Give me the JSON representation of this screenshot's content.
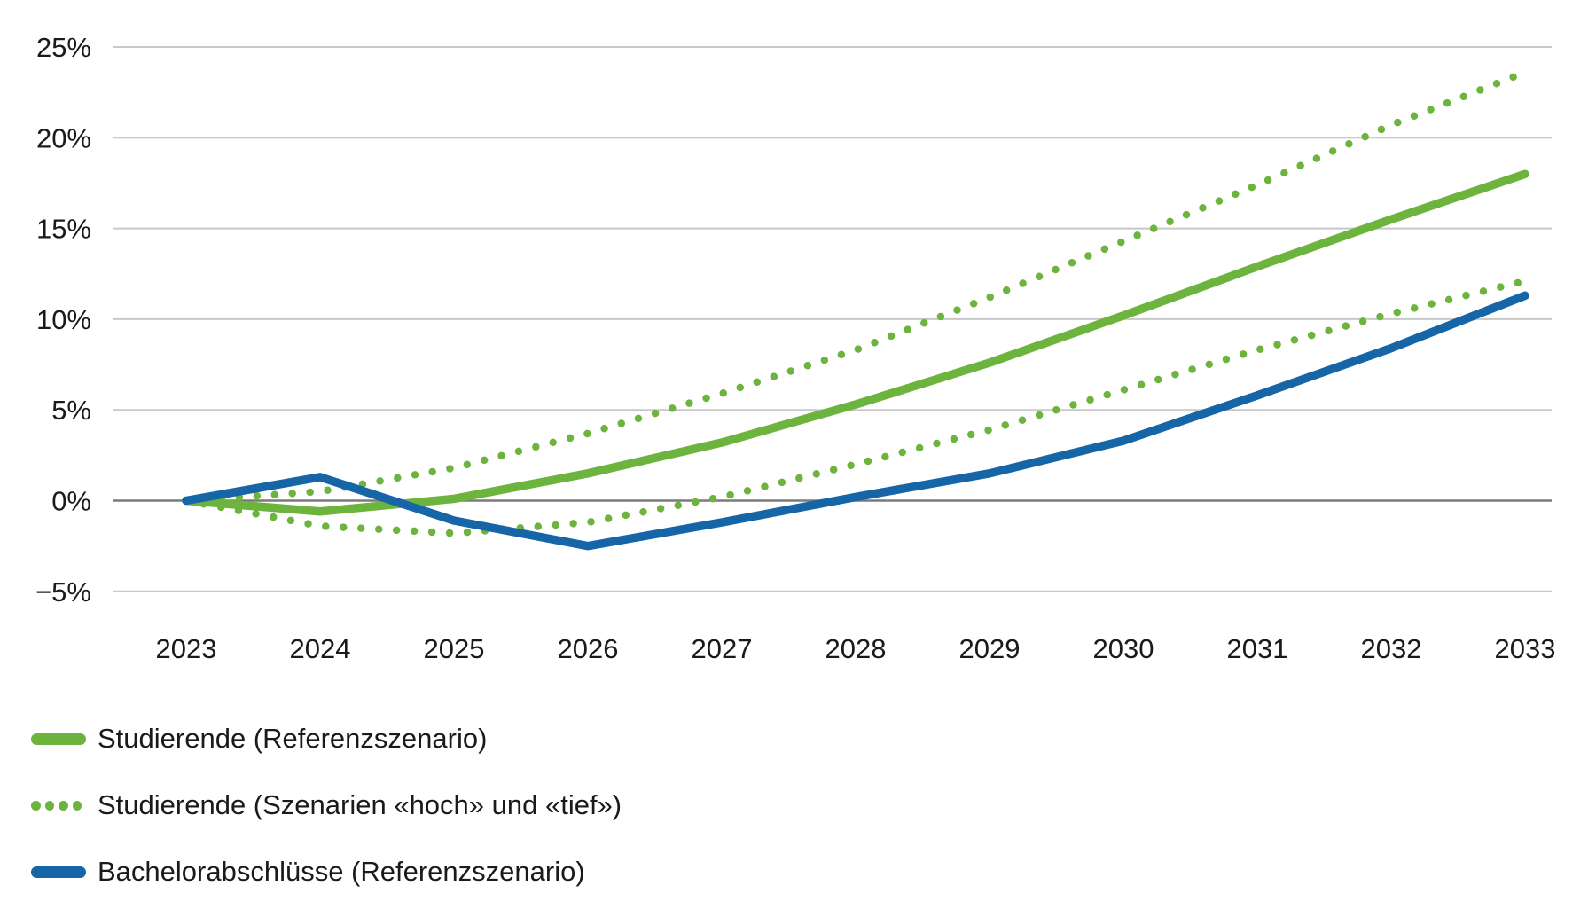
{
  "chart_data": {
    "type": "line",
    "x": [
      2023,
      2024,
      2025,
      2026,
      2027,
      2028,
      2029,
      2030,
      2031,
      2032,
      2033
    ],
    "series": [
      {
        "key": "studierende_referenzszenario",
        "name": "Studierende (Referenzszenario)",
        "style": "solid",
        "color": "#6CB43E",
        "values": [
          0,
          -0.6,
          0.1,
          1.5,
          3.2,
          5.3,
          7.6,
          10.2,
          12.9,
          15.5,
          18.0
        ]
      },
      {
        "key": "studierende_szenario_hoch",
        "name": "Studierende (Szenario «hoch»)",
        "style": "dotted",
        "color": "#6CB43E",
        "values": [
          0,
          0.5,
          1.8,
          3.7,
          5.9,
          8.3,
          11.2,
          14.3,
          17.4,
          20.7,
          23.6
        ]
      },
      {
        "key": "studierende_szenario_tief",
        "name": "Studierende (Szenario «tief»)",
        "style": "dotted",
        "color": "#6CB43E",
        "values": [
          0,
          -1.4,
          -1.8,
          -1.2,
          0.2,
          2.0,
          3.9,
          6.1,
          8.3,
          10.3,
          12.1
        ]
      },
      {
        "key": "bachelorabschluesse_referenzszenario",
        "name": "Bachelorabschlüsse (Referenzszenario)",
        "style": "solid",
        "color": "#1565A7",
        "values": [
          0,
          1.3,
          -1.1,
          -2.5,
          -1.2,
          0.2,
          1.5,
          3.3,
          5.8,
          8.4,
          11.3
        ]
      }
    ],
    "y_axis": {
      "ticks": [
        25,
        20,
        15,
        10,
        5,
        0,
        -5
      ],
      "tick_labels": [
        "25%",
        "20%",
        "15%",
        "10%",
        "5%",
        "0%",
        "−5%"
      ],
      "ylim": [
        -5,
        25
      ],
      "grid": true,
      "zero_line": true
    },
    "x_axis": {
      "tick_labels": [
        "2023",
        "2024",
        "2025",
        "2026",
        "2027",
        "2028",
        "2029",
        "2030",
        "2031",
        "2032",
        "2033"
      ]
    },
    "title": "",
    "legend_position": "bottom-left"
  },
  "legend": {
    "items": [
      {
        "label": "Studierende (Referenzszenario)",
        "swatch": "solid",
        "color": "#6CB43E"
      },
      {
        "label": "Studierende (Szenarien «hoch» und «tief»)",
        "swatch": "dotted",
        "color": "#6CB43E"
      },
      {
        "label": "Bachelorabschlüsse (Referenzszenario)",
        "swatch": "solid",
        "color": "#1565A7"
      }
    ]
  },
  "colors": {
    "green": "#6CB43E",
    "blue": "#1565A7",
    "gridline": "#c8c8c8",
    "zero_line": "#7a7a7a",
    "text": "#1a1a1a",
    "background": "#ffffff"
  }
}
